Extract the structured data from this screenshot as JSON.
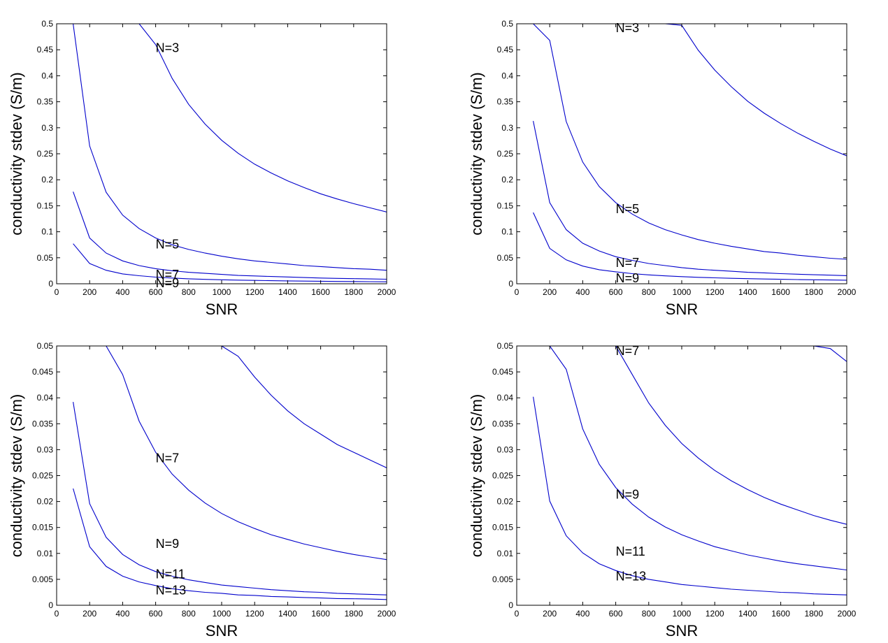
{
  "figure": {
    "background": "#ffffff",
    "line_color": "#0000cc"
  },
  "chart_data": [
    {
      "type": "line",
      "title": "",
      "xlabel": "SNR",
      "ylabel": "conductivity stdev (S/m)",
      "xlim": [
        0,
        2000
      ],
      "ylim": [
        0,
        0.5
      ],
      "xticks": [
        0,
        200,
        400,
        600,
        800,
        1000,
        1200,
        1400,
        1600,
        1800,
        2000
      ],
      "xtick_labels": [
        "0",
        "200",
        "400",
        "600",
        "800",
        "1000",
        "1200",
        "1400",
        "1600",
        "1800",
        "2000"
      ],
      "yticks": [
        0,
        0.05,
        0.1,
        0.15,
        0.2,
        0.25,
        0.3,
        0.35,
        0.4,
        0.45,
        0.5
      ],
      "ytick_labels": [
        "0",
        "0.05",
        "0.1",
        "0.15",
        "0.2",
        "0.25",
        "0.3",
        "0.35",
        "0.4",
        "0.45",
        "0.5"
      ],
      "grid": false,
      "series": [
        {
          "name": "N=3",
          "label_at": [
            600,
            0.455
          ],
          "x": [
            100,
            200,
            300,
            400,
            500,
            600,
            700,
            800,
            900,
            1000,
            1100,
            1200,
            1300,
            1400,
            1500,
            1600,
            1700,
            1800,
            1900,
            2000
          ],
          "values": [
            0.5,
            0.5,
            0.5,
            0.5,
            0.5,
            0.46,
            0.395,
            0.345,
            0.307,
            0.276,
            0.251,
            0.23,
            0.213,
            0.198,
            0.185,
            0.173,
            0.163,
            0.154,
            0.146,
            0.138
          ]
        },
        {
          "name": "N=5",
          "label_at": [
            600,
            0.077
          ],
          "x": [
            100,
            200,
            300,
            400,
            500,
            600,
            700,
            800,
            900,
            1000,
            1100,
            1200,
            1300,
            1400,
            1500,
            1600,
            1700,
            1800,
            1900,
            2000
          ],
          "values": [
            0.5,
            0.265,
            0.176,
            0.132,
            0.106,
            0.088,
            0.075,
            0.066,
            0.059,
            0.053,
            0.048,
            0.044,
            0.041,
            0.038,
            0.035,
            0.033,
            0.031,
            0.029,
            0.028,
            0.026
          ]
        },
        {
          "name": "N=7",
          "label_at": [
            600,
            0.019
          ],
          "x": [
            100,
            200,
            300,
            400,
            500,
            600,
            700,
            800,
            900,
            1000,
            1100,
            1200,
            1300,
            1400,
            1500,
            1600,
            1700,
            1800,
            1900,
            2000
          ],
          "values": [
            0.177,
            0.088,
            0.059,
            0.044,
            0.035,
            0.029,
            0.025,
            0.022,
            0.02,
            0.018,
            0.016,
            0.015,
            0.014,
            0.013,
            0.012,
            0.011,
            0.0104,
            0.0098,
            0.0093,
            0.0088
          ]
        },
        {
          "name": "N=9",
          "label_at": [
            600,
            0.003
          ],
          "x": [
            100,
            200,
            300,
            400,
            500,
            600,
            700,
            800,
            900,
            1000,
            1100,
            1200,
            1300,
            1400,
            1500,
            1600,
            1700,
            1800,
            1900,
            2000
          ],
          "values": [
            0.077,
            0.039,
            0.026,
            0.019,
            0.0154,
            0.0128,
            0.011,
            0.0096,
            0.0085,
            0.0077,
            0.007,
            0.0064,
            0.0059,
            0.0055,
            0.0051,
            0.0048,
            0.0045,
            0.0043,
            0.004,
            0.0038
          ]
        }
      ]
    },
    {
      "type": "line",
      "title": "",
      "xlabel": "SNR",
      "ylabel": "conductivity stdev (S/m)",
      "xlim": [
        0,
        2000
      ],
      "ylim": [
        0,
        0.5
      ],
      "xticks": [
        0,
        200,
        400,
        600,
        800,
        1000,
        1200,
        1400,
        1600,
        1800,
        2000
      ],
      "xtick_labels": [
        "0",
        "200",
        "400",
        "600",
        "800",
        "1000",
        "1200",
        "1400",
        "1600",
        "1800",
        "2000"
      ],
      "yticks": [
        0,
        0.05,
        0.1,
        0.15,
        0.2,
        0.25,
        0.3,
        0.35,
        0.4,
        0.45,
        0.5
      ],
      "ytick_labels": [
        "0",
        "0.05",
        "0.1",
        "0.15",
        "0.2",
        "0.25",
        "0.3",
        "0.35",
        "0.4",
        "0.45",
        "0.5"
      ],
      "grid": false,
      "series": [
        {
          "name": "N=3",
          "label_at": [
            600,
            0.493
          ],
          "x": [
            100,
            200,
            300,
            400,
            500,
            600,
            700,
            800,
            900,
            1000,
            1100,
            1200,
            1300,
            1400,
            1500,
            1600,
            1700,
            1800,
            1900,
            2000
          ],
          "values": [
            0.5,
            0.5,
            0.5,
            0.5,
            0.5,
            0.5,
            0.5,
            0.5,
            0.5,
            0.497,
            0.449,
            0.411,
            0.379,
            0.351,
            0.328,
            0.308,
            0.29,
            0.274,
            0.259,
            0.246
          ]
        },
        {
          "name": "N=5",
          "label_at": [
            600,
            0.145
          ],
          "x": [
            100,
            200,
            300,
            400,
            500,
            600,
            700,
            800,
            900,
            1000,
            1100,
            1200,
            1300,
            1400,
            1500,
            1600,
            1700,
            1800,
            1900,
            2000
          ],
          "values": [
            0.5,
            0.468,
            0.312,
            0.234,
            0.187,
            0.156,
            0.134,
            0.117,
            0.104,
            0.094,
            0.085,
            0.078,
            0.072,
            0.067,
            0.062,
            0.059,
            0.055,
            0.052,
            0.049,
            0.047
          ]
        },
        {
          "name": "N=7",
          "label_at": [
            600,
            0.042
          ],
          "x": [
            100,
            200,
            300,
            400,
            500,
            600,
            700,
            800,
            900,
            1000,
            1100,
            1200,
            1300,
            1400,
            1500,
            1600,
            1700,
            1800,
            1900,
            2000
          ],
          "values": [
            0.313,
            0.156,
            0.104,
            0.078,
            0.063,
            0.052,
            0.045,
            0.039,
            0.035,
            0.031,
            0.028,
            0.026,
            0.024,
            0.022,
            0.021,
            0.0195,
            0.0184,
            0.0174,
            0.0165,
            0.0156
          ]
        },
        {
          "name": "N=9",
          "label_at": [
            600,
            0.012
          ],
          "x": [
            100,
            200,
            300,
            400,
            500,
            600,
            700,
            800,
            900,
            1000,
            1100,
            1200,
            1300,
            1400,
            1500,
            1600,
            1700,
            1800,
            1900,
            2000
          ],
          "values": [
            0.137,
            0.068,
            0.046,
            0.034,
            0.027,
            0.023,
            0.0195,
            0.0171,
            0.0152,
            0.0137,
            0.0124,
            0.0114,
            0.0105,
            0.0098,
            0.0091,
            0.0086,
            0.008,
            0.0076,
            0.0072,
            0.0068
          ]
        }
      ]
    },
    {
      "type": "line",
      "title": "",
      "xlabel": "SNR",
      "ylabel": "conductivity stdev (S/m)",
      "xlim": [
        0,
        2000
      ],
      "ylim": [
        0,
        0.05
      ],
      "xticks": [
        0,
        200,
        400,
        600,
        800,
        1000,
        1200,
        1400,
        1600,
        1800,
        2000
      ],
      "xtick_labels": [
        "0",
        "200",
        "400",
        "600",
        "800",
        "1000",
        "1200",
        "1400",
        "1600",
        "1800",
        "2000"
      ],
      "yticks": [
        0,
        0.005,
        0.01,
        0.015,
        0.02,
        0.025,
        0.03,
        0.035,
        0.04,
        0.045,
        0.05
      ],
      "ytick_labels": [
        "0",
        "0.005",
        "0.01",
        "0.015",
        "0.02",
        "0.025",
        "0.03",
        "0.035",
        "0.04",
        "0.045",
        "0.05"
      ],
      "grid": false,
      "series": [
        {
          "name": "N=7",
          "label_at": [
            600,
            0.0285
          ],
          "x": [
            100,
            200,
            300,
            400,
            500,
            600,
            700,
            800,
            900,
            1000,
            1100,
            1200,
            1300,
            1400,
            1500,
            1600,
            1700,
            1800,
            1900,
            2000
          ],
          "values": [
            0.05,
            0.05,
            0.05,
            0.05,
            0.05,
            0.05,
            0.05,
            0.05,
            0.05,
            0.05,
            0.048,
            0.044,
            0.0405,
            0.0375,
            0.035,
            0.033,
            0.031,
            0.0295,
            0.028,
            0.0265
          ]
        },
        {
          "name": "N=9",
          "label_at": [
            600,
            0.012
          ],
          "x": [
            100,
            200,
            300,
            400,
            500,
            600,
            700,
            800,
            900,
            1000,
            1100,
            1200,
            1300,
            1400,
            1500,
            1600,
            1700,
            1800,
            1900,
            2000
          ],
          "values": [
            0.05,
            0.05,
            0.05,
            0.0445,
            0.0355,
            0.0295,
            0.0253,
            0.0222,
            0.0197,
            0.0177,
            0.0161,
            0.0148,
            0.0136,
            0.0127,
            0.0118,
            0.0111,
            0.0104,
            0.0098,
            0.0093,
            0.0088
          ]
        },
        {
          "name": "N=11",
          "label_at": [
            600,
            0.0061
          ],
          "x": [
            100,
            200,
            300,
            400,
            500,
            600,
            700,
            800,
            900,
            1000,
            1100,
            1200,
            1300,
            1400,
            1500,
            1600,
            1700,
            1800,
            1900,
            2000
          ],
          "values": [
            0.0392,
            0.0196,
            0.0131,
            0.0098,
            0.0078,
            0.0065,
            0.0056,
            0.0049,
            0.0044,
            0.0039,
            0.0036,
            0.0033,
            0.003,
            0.0028,
            0.0026,
            0.0025,
            0.0023,
            0.0022,
            0.0021,
            0.002
          ]
        },
        {
          "name": "N=13",
          "label_at": [
            600,
            0.003
          ],
          "x": [
            100,
            200,
            300,
            400,
            500,
            600,
            700,
            800,
            900,
            1000,
            1100,
            1200,
            1300,
            1400,
            1500,
            1600,
            1700,
            1800,
            1900,
            2000
          ],
          "values": [
            0.0225,
            0.0113,
            0.0075,
            0.0056,
            0.0045,
            0.0038,
            0.0032,
            0.0028,
            0.0025,
            0.0023,
            0.002,
            0.0019,
            0.0017,
            0.0016,
            0.0015,
            0.0014,
            0.0013,
            0.00125,
            0.0012,
            0.0011
          ]
        }
      ]
    },
    {
      "type": "line",
      "title": "",
      "xlabel": "SNR",
      "ylabel": "conductivity stdev (S/m)",
      "xlim": [
        0,
        2000
      ],
      "ylim": [
        0,
        0.05
      ],
      "xticks": [
        0,
        200,
        400,
        600,
        800,
        1000,
        1200,
        1400,
        1600,
        1800,
        2000
      ],
      "xtick_labels": [
        "0",
        "200",
        "400",
        "600",
        "800",
        "1000",
        "1200",
        "1400",
        "1600",
        "1800",
        "2000"
      ],
      "yticks": [
        0,
        0.005,
        0.01,
        0.015,
        0.02,
        0.025,
        0.03,
        0.035,
        0.04,
        0.045,
        0.05
      ],
      "ytick_labels": [
        "0",
        "0.005",
        "0.01",
        "0.015",
        "0.02",
        "0.025",
        "0.03",
        "0.035",
        "0.04",
        "0.045",
        "0.05"
      ],
      "grid": false,
      "series": [
        {
          "name": "N=7",
          "label_at": [
            600,
            0.0492
          ],
          "x": [
            100,
            200,
            300,
            400,
            500,
            600,
            700,
            800,
            900,
            1000,
            1100,
            1200,
            1300,
            1400,
            1500,
            1600,
            1700,
            1800,
            1900,
            2000
          ],
          "values": [
            0.05,
            0.05,
            0.05,
            0.05,
            0.05,
            0.05,
            0.05,
            0.05,
            0.05,
            0.05,
            0.05,
            0.05,
            0.05,
            0.05,
            0.05,
            0.05,
            0.05,
            0.05,
            0.0495,
            0.047
          ]
        },
        {
          "name": "N=9",
          "label_at": [
            600,
            0.0215
          ],
          "x": [
            100,
            200,
            300,
            400,
            500,
            600,
            700,
            800,
            900,
            1000,
            1100,
            1200,
            1300,
            1400,
            1500,
            1600,
            1700,
            1800,
            1900,
            2000
          ],
          "values": [
            0.05,
            0.05,
            0.05,
            0.05,
            0.05,
            0.05,
            0.0445,
            0.039,
            0.0347,
            0.0312,
            0.0284,
            0.026,
            0.024,
            0.0223,
            0.0208,
            0.0195,
            0.0184,
            0.0173,
            0.0164,
            0.0156
          ]
        },
        {
          "name": "N=11",
          "label_at": [
            600,
            0.0105
          ],
          "x": [
            100,
            200,
            300,
            400,
            500,
            600,
            700,
            800,
            900,
            1000,
            1100,
            1200,
            1300,
            1400,
            1500,
            1600,
            1700,
            1800,
            1900,
            2000
          ],
          "values": [
            0.05,
            0.05,
            0.0455,
            0.034,
            0.0272,
            0.0227,
            0.0195,
            0.017,
            0.0151,
            0.0136,
            0.0124,
            0.0113,
            0.0105,
            0.0097,
            0.0091,
            0.0085,
            0.008,
            0.0076,
            0.0072,
            0.0068
          ]
        },
        {
          "name": "N=13",
          "label_at": [
            600,
            0.0057
          ],
          "x": [
            100,
            200,
            300,
            400,
            500,
            600,
            700,
            800,
            900,
            1000,
            1100,
            1200,
            1300,
            1400,
            1500,
            1600,
            1700,
            1800,
            1900,
            2000
          ],
          "values": [
            0.0402,
            0.0201,
            0.0134,
            0.0101,
            0.008,
            0.0067,
            0.0057,
            0.005,
            0.0045,
            0.004,
            0.0037,
            0.0034,
            0.0031,
            0.0029,
            0.0027,
            0.0025,
            0.0024,
            0.0022,
            0.0021,
            0.002
          ]
        }
      ]
    }
  ]
}
